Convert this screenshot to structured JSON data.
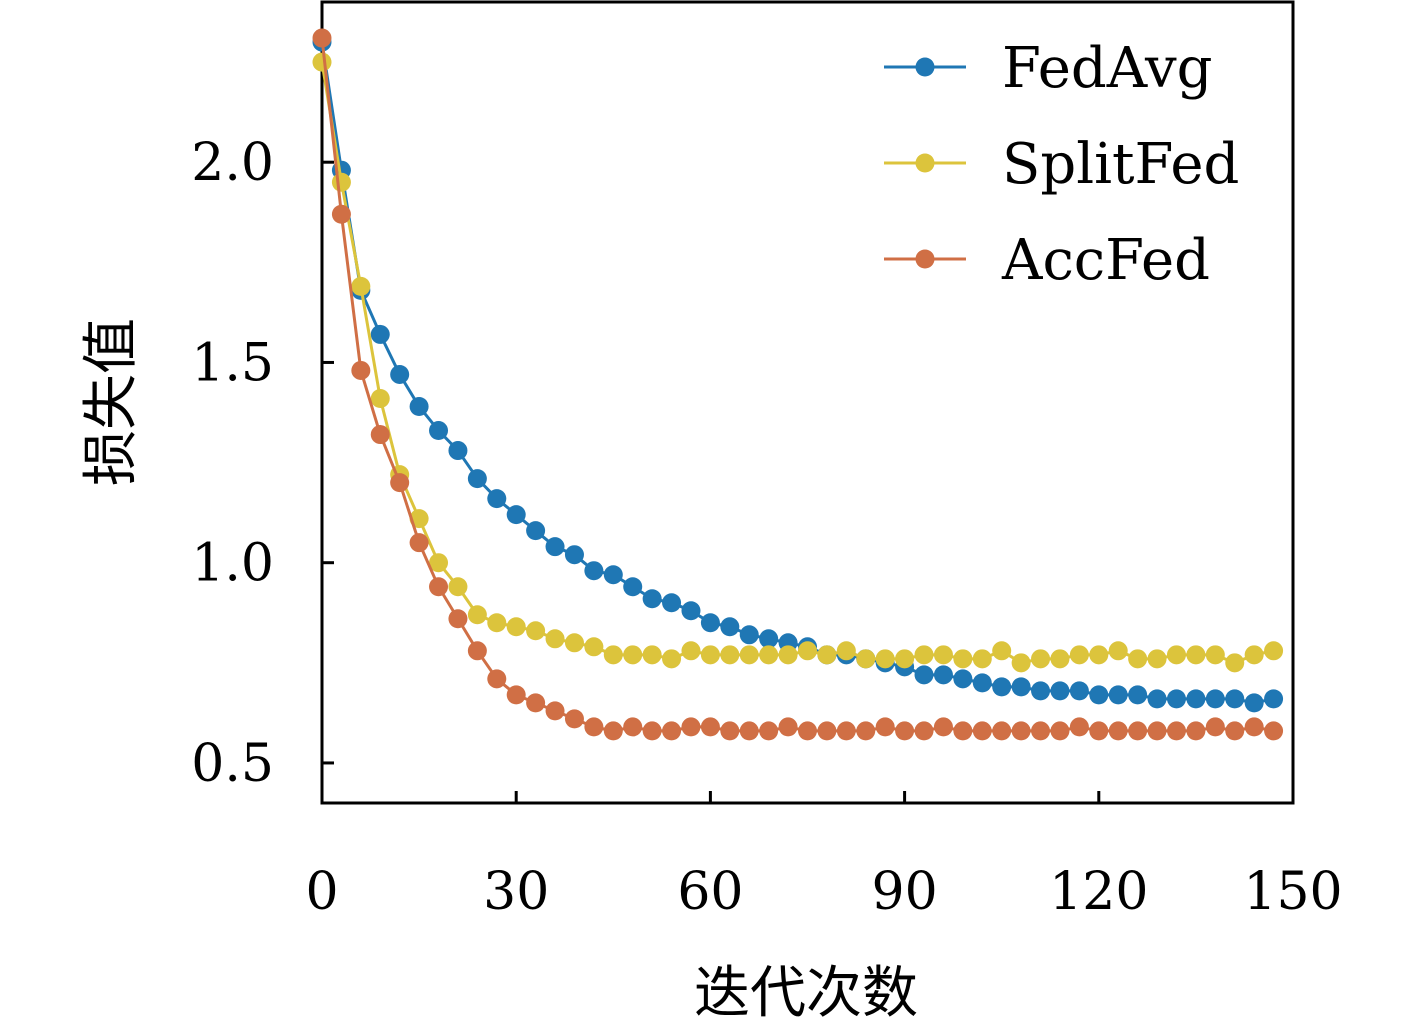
{
  "chart_data": {
    "type": "line",
    "xlabel": "迭代次数",
    "ylabel": "损失值",
    "xlim": [
      0,
      150
    ],
    "ylim": [
      0.4,
      2.4
    ],
    "xticks": [
      0,
      30,
      60,
      90,
      120,
      150
    ],
    "yticks": [
      0.5,
      1.0,
      1.5,
      2.0
    ],
    "xtick_labels": [
      "0",
      "30",
      "60",
      "90",
      "120",
      "150"
    ],
    "ytick_labels": [
      "0.5",
      "1.0",
      "1.5",
      "2.0"
    ],
    "grid": false,
    "legend_position": "top-right",
    "x": [
      0,
      3,
      6,
      9,
      12,
      15,
      18,
      21,
      24,
      27,
      30,
      33,
      36,
      39,
      42,
      45,
      48,
      51,
      54,
      57,
      60,
      63,
      66,
      69,
      72,
      75,
      78,
      81,
      84,
      87,
      90,
      93,
      96,
      99,
      102,
      105,
      108,
      111,
      114,
      117,
      120,
      123,
      126,
      129,
      132,
      135,
      138,
      141,
      144,
      147
    ],
    "series": [
      {
        "name": "FedAvg",
        "color": "#1f77b4",
        "values": [
          2.3,
          1.98,
          1.68,
          1.57,
          1.47,
          1.39,
          1.33,
          1.28,
          1.21,
          1.16,
          1.12,
          1.08,
          1.04,
          1.02,
          0.98,
          0.97,
          0.94,
          0.91,
          0.9,
          0.88,
          0.85,
          0.84,
          0.82,
          0.81,
          0.8,
          0.79,
          0.77,
          0.77,
          0.76,
          0.75,
          0.74,
          0.72,
          0.72,
          0.71,
          0.7,
          0.69,
          0.69,
          0.68,
          0.68,
          0.68,
          0.67,
          0.67,
          0.67,
          0.66,
          0.66,
          0.66,
          0.66,
          0.66,
          0.65,
          0.66
        ]
      },
      {
        "name": "SplitFed",
        "color": "#dcc43c",
        "values": [
          2.25,
          1.95,
          1.69,
          1.41,
          1.22,
          1.11,
          1.0,
          0.94,
          0.87,
          0.85,
          0.84,
          0.83,
          0.81,
          0.8,
          0.79,
          0.77,
          0.77,
          0.77,
          0.76,
          0.78,
          0.77,
          0.77,
          0.77,
          0.77,
          0.77,
          0.78,
          0.77,
          0.78,
          0.76,
          0.76,
          0.76,
          0.77,
          0.77,
          0.76,
          0.76,
          0.78,
          0.75,
          0.76,
          0.76,
          0.77,
          0.77,
          0.78,
          0.76,
          0.76,
          0.77,
          0.77,
          0.77,
          0.75,
          0.77,
          0.78
        ]
      },
      {
        "name": "AccFed",
        "color": "#d06f45",
        "values": [
          2.31,
          1.87,
          1.48,
          1.32,
          1.2,
          1.05,
          0.94,
          0.86,
          0.78,
          0.71,
          0.67,
          0.65,
          0.63,
          0.61,
          0.59,
          0.58,
          0.59,
          0.58,
          0.58,
          0.59,
          0.59,
          0.58,
          0.58,
          0.58,
          0.59,
          0.58,
          0.58,
          0.58,
          0.58,
          0.59,
          0.58,
          0.58,
          0.59,
          0.58,
          0.58,
          0.58,
          0.58,
          0.58,
          0.58,
          0.59,
          0.58,
          0.58,
          0.58,
          0.58,
          0.58,
          0.58,
          0.59,
          0.58,
          0.59,
          0.58
        ]
      }
    ]
  }
}
